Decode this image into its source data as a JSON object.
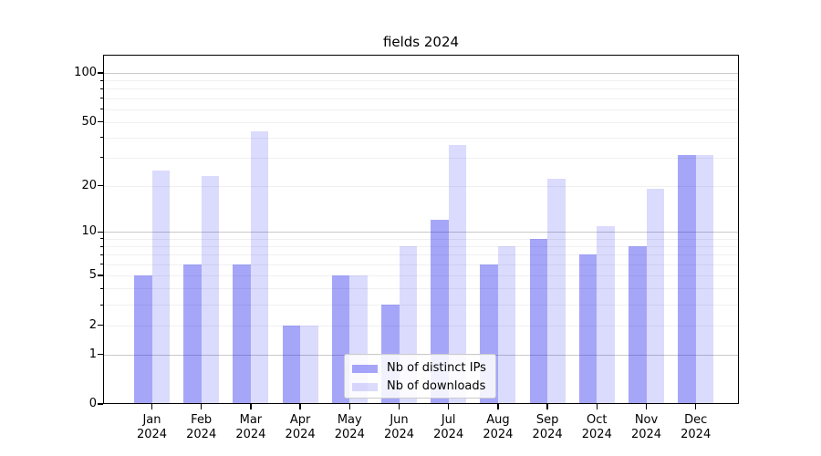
{
  "figure": {
    "title": "fields 2024"
  },
  "chart_data": {
    "type": "bar",
    "title": "fields 2024",
    "categories": [
      "Jan 2024",
      "Feb 2024",
      "Mar 2024",
      "Apr 2024",
      "May 2024",
      "Jun 2024",
      "Jul 2024",
      "Aug 2024",
      "Sep 2024",
      "Oct 2024",
      "Nov 2024",
      "Dec 2024"
    ],
    "months": [
      "Jan",
      "Feb",
      "Mar",
      "Apr",
      "May",
      "Jun",
      "Jul",
      "Aug",
      "Sep",
      "Oct",
      "Nov",
      "Dec"
    ],
    "year_label": "2024",
    "series": [
      {
        "name": "Nb of distinct IPs",
        "color": "#0000ee",
        "alpha": 0.35,
        "values": [
          5,
          6,
          6,
          2,
          5,
          3,
          12,
          6,
          9,
          7,
          8,
          31
        ]
      },
      {
        "name": "Nb of downloads",
        "color": "#0000ee",
        "alpha": 0.14,
        "values": [
          25,
          23,
          44,
          2,
          5,
          8,
          36,
          8,
          22,
          11,
          19,
          31
        ]
      }
    ],
    "yaxis": {
      "scale": "log1p",
      "ticks": [
        0,
        1,
        2,
        5,
        10,
        20,
        50,
        100
      ],
      "major_grid_values": [
        1,
        10,
        100
      ],
      "range": [
        0,
        129
      ]
    },
    "legend": {
      "position": "bottom-center"
    },
    "grid": true,
    "style": {
      "bar_dark": "#a6a6fa",
      "bar_light": "#dcdcfc",
      "major_grid": "#c9c9c9",
      "minor_grid": "#f0f0f0",
      "spine": "#000000",
      "text": "#000000",
      "background": "#ffffff"
    }
  }
}
